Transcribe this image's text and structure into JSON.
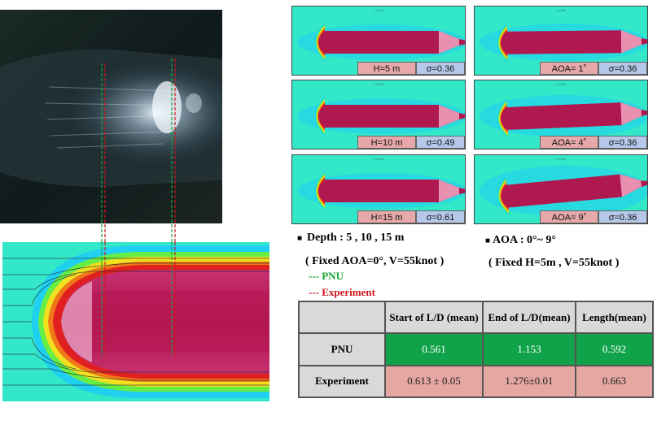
{
  "panels": [
    {
      "id": "depth-5",
      "sig": "r = 0.2",
      "label": "H=5 m",
      "sigma": "σ=0.36"
    },
    {
      "id": "aoa-1",
      "sig": "r = 0.2",
      "label": "AOA= 1˚",
      "sigma": "σ=0.36"
    },
    {
      "id": "depth-10",
      "sig": "r = 0.2",
      "label": "H=10 m",
      "sigma": "σ=0.49"
    },
    {
      "id": "aoa-4",
      "sig": "r = 0.2",
      "label": "AOA= 4˚",
      "sigma": "σ=0.36"
    },
    {
      "id": "depth-15",
      "sig": "r = 0.2",
      "label": "H=15 m",
      "sigma": "σ=0.61"
    },
    {
      "id": "aoa-9",
      "sig": "r = 0.2",
      "label": "AOA= 9˚",
      "sigma": "σ=0.36"
    }
  ],
  "captions": {
    "depth_title": "Depth  : 5 , 10 , 15 m",
    "depth_fixed": "( Fixed  AOA=0°, V=55knot )",
    "aoa_title": "AOA : 0°~  9°",
    "aoa_fixed": "( Fixed  H=5m , V=55knot )",
    "bullet": "■"
  },
  "legend": {
    "pnu": "--- PNU",
    "experiment": "--- Experiment"
  },
  "table": {
    "headers": [
      "",
      "Start of L/D (mean)",
      "End of L/D(mean)",
      "Length(mean)"
    ],
    "rows": [
      {
        "name": "PNU",
        "values": [
          "0.561",
          "1.153",
          "0.592"
        ]
      },
      {
        "name": "Experiment",
        "values": [
          "0.613 ± 0.05",
          "1.276±0.01",
          "0.663"
        ]
      }
    ]
  },
  "colors": {
    "pnu_line": "#1aa531",
    "experiment_line": "#d0141c",
    "cfd_background": "#33e8c8",
    "body_color": "#b01850"
  }
}
